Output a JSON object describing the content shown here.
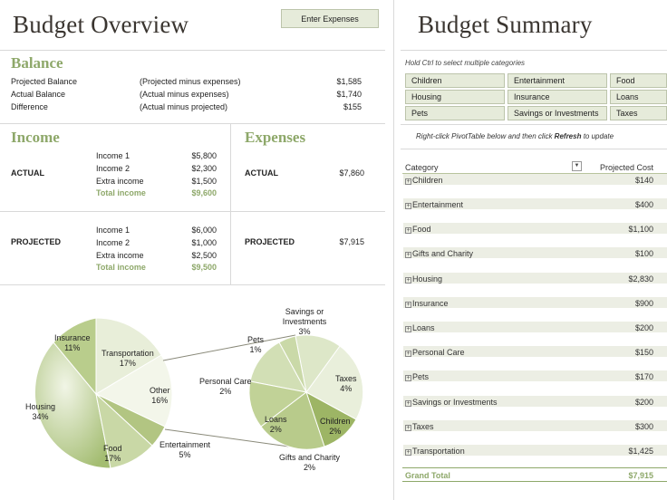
{
  "overview": {
    "title": "Budget Overview",
    "enter_button": "Enter Expenses",
    "balance": {
      "heading": "Balance",
      "rows": [
        {
          "label": "Projected Balance",
          "formula": "(Projected  minus expenses)",
          "value": "$1,585"
        },
        {
          "label": "Actual Balance",
          "formula": "(Actual  minus expenses)",
          "value": "$1,740"
        },
        {
          "label": "Difference",
          "formula": "(Actual minus projected)",
          "value": "$155"
        }
      ]
    },
    "income": {
      "heading": "Income",
      "actual": {
        "label": "ACTUAL",
        "items": [
          {
            "name": "Income 1",
            "value": "$5,800"
          },
          {
            "name": "Income 2",
            "value": "$2,300"
          },
          {
            "name": "Extra income",
            "value": "$1,500"
          }
        ],
        "total_label": "Total income",
        "total": "$9,600"
      },
      "projected": {
        "label": "PROJECTED",
        "items": [
          {
            "name": "Income 1",
            "value": "$6,000"
          },
          {
            "name": "Income 2",
            "value": "$1,000"
          },
          {
            "name": "Extra income",
            "value": "$2,500"
          }
        ],
        "total_label": "Total income",
        "total": "$9,500"
      }
    },
    "expenses": {
      "heading": "Expenses",
      "actual_label": "ACTUAL",
      "actual_value": "$7,860",
      "projected_label": "PROJECTED",
      "projected_value": "$7,915"
    },
    "pie_main": [
      {
        "name": "Insurance",
        "pct": "11%"
      },
      {
        "name": "Transportation",
        "pct": "17%"
      },
      {
        "name": "Other",
        "pct": "16%"
      },
      {
        "name": "Housing",
        "pct": "34%"
      },
      {
        "name": "Food",
        "pct": "17%"
      },
      {
        "name": "Entertainment",
        "pct": "5%"
      }
    ],
    "pie_sub": [
      {
        "name": "Savings or Investments",
        "pct": "3%"
      },
      {
        "name": "Pets",
        "pct": "1%"
      },
      {
        "name": "Personal Care",
        "pct": "2%"
      },
      {
        "name": "Taxes",
        "pct": "4%"
      },
      {
        "name": "Loans",
        "pct": "2%"
      },
      {
        "name": "Children",
        "pct": "2%"
      },
      {
        "name": "Gifts and Charity",
        "pct": "2%"
      }
    ]
  },
  "summary": {
    "title": "Budget Summary",
    "hint": "Hold Ctrl to select multiple categories",
    "slicers": [
      "Children",
      "Entertainment",
      "Food",
      "Housing",
      "Insurance",
      "Loans",
      "Pets",
      "Savings or Investments",
      "Taxes"
    ],
    "refresh_note_pre": "Right-click PivotTable below and then click ",
    "refresh_word": "Refresh",
    "refresh_note_post": " to update",
    "col_category": "Category",
    "col_cost": "Projected Cost",
    "rows": [
      {
        "name": "Children",
        "cost": "$140"
      },
      {
        "name": "Entertainment",
        "cost": "$400"
      },
      {
        "name": "Food",
        "cost": "$1,100"
      },
      {
        "name": "Gifts and Charity",
        "cost": "$100"
      },
      {
        "name": "Housing",
        "cost": "$2,830"
      },
      {
        "name": "Insurance",
        "cost": "$900"
      },
      {
        "name": "Loans",
        "cost": "$200"
      },
      {
        "name": "Personal Care",
        "cost": "$150"
      },
      {
        "name": "Pets",
        "cost": "$170"
      },
      {
        "name": "Savings or Investments",
        "cost": "$200"
      },
      {
        "name": "Taxes",
        "cost": "$300"
      },
      {
        "name": "Transportation",
        "cost": "$1,425"
      }
    ],
    "total_label": "Grand Total",
    "total_value": "$7,915"
  }
}
